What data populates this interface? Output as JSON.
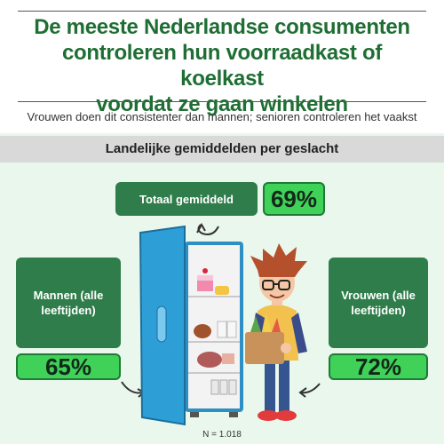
{
  "header": {
    "title_lines": [
      "De meeste Nederlandse consumenten",
      "controleren hun voorraadkast of koelkast",
      "voordat ze gaan winkelen"
    ],
    "subtitle": "Vrouwen doen dit consistenter dan mannen; senioren controleren het vaakst"
  },
  "section": {
    "heading": "Landelijke gemiddelden per geslacht"
  },
  "stats": {
    "total": {
      "label": "Totaal gemiddeld",
      "value": "69%"
    },
    "men": {
      "label_lines": [
        "Mannen (alle",
        "leeftijden)"
      ],
      "value": "65%"
    },
    "women": {
      "label_lines": [
        "Vrouwen (alle",
        "leeftijden)"
      ],
      "value": "72%"
    }
  },
  "footer": {
    "sample": "N = 1.018"
  },
  "colors": {
    "title_green": "#1f6e34",
    "label_box_green": "#2f7d4a",
    "value_box_green": "#3fd158",
    "background": "#e9f7ec",
    "fridge_blue": "#2e9fd6"
  }
}
